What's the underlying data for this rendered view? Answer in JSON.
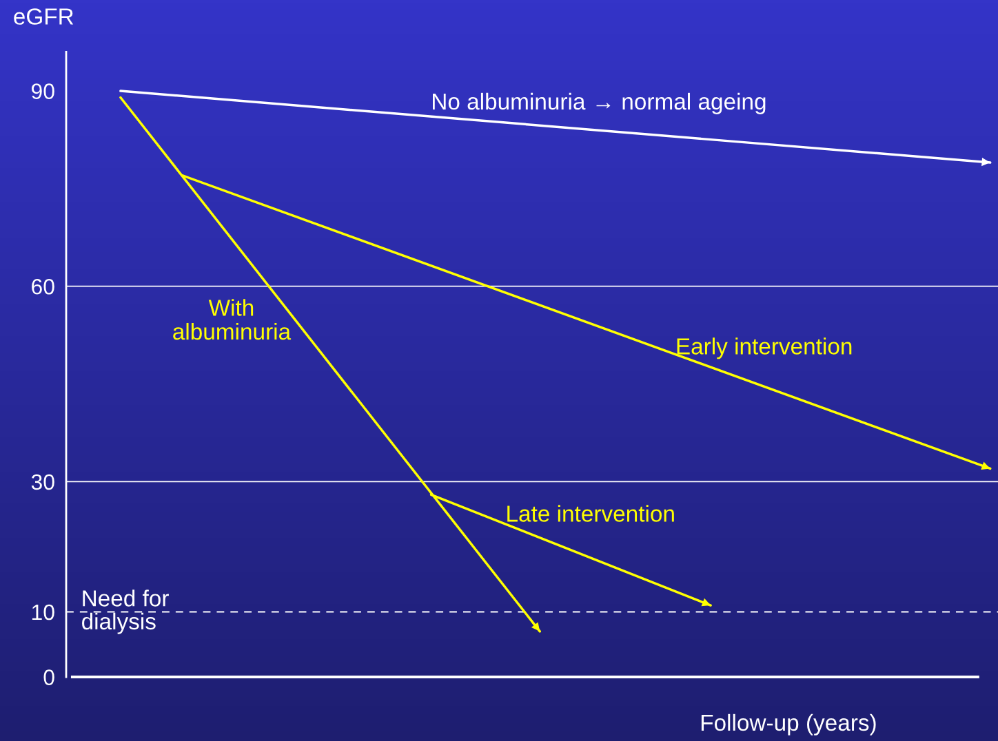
{
  "chart_data": {
    "type": "line",
    "xlabel": "Follow-up (years)",
    "ylabel": "eGFR",
    "categories": [
      null,
      null,
      null,
      null,
      null,
      null,
      null,
      null,
      null,
      null,
      null,
      null,
      null,
      null,
      null,
      null,
      null,
      null,
      null,
      null,
      null,
      null,
      null,
      null,
      null,
      null,
      null,
      null,
      null,
      null,
      null,
      null,
      null,
      null,
      null,
      null,
      null,
      null,
      null,
      null,
      null,
      null,
      null,
      null,
      null,
      null,
      null,
      null,
      null,
      null,
      null,
      null,
      null,
      null,
      null,
      null,
      null,
      null,
      null,
      null
    ],
    "ylim": [
      0,
      96
    ],
    "yticks": [
      0,
      10,
      30,
      60,
      90
    ],
    "series": [
      {
        "name": "No albuminuria → normal ageing",
        "color": "#ffffff",
        "values": [
          null,
          null,
          null,
          90,
          null,
          null,
          null,
          null,
          null,
          null,
          null,
          null,
          null,
          null,
          null,
          null,
          null,
          null,
          null,
          null,
          null,
          null,
          null,
          null,
          null,
          null,
          null,
          null,
          null,
          null,
          null,
          null,
          null,
          null,
          null,
          null,
          null,
          null,
          null,
          null,
          null,
          null,
          null,
          null,
          null,
          null,
          null,
          null,
          null,
          null,
          null,
          null,
          null,
          null,
          null,
          null,
          null,
          null,
          null,
          79
        ]
      },
      {
        "name": "With\nalbuminuria",
        "color": "#ffff00",
        "values": [
          null,
          null,
          null,
          89,
          null,
          null,
          null,
          null,
          null,
          null,
          null,
          null,
          null,
          null,
          null,
          null,
          null,
          null,
          null,
          null,
          null,
          null,
          null,
          null,
          null,
          null,
          null,
          null,
          null,
          null,
          7,
          null,
          null,
          null,
          null,
          null,
          null,
          null,
          null,
          null,
          null,
          null,
          null,
          null,
          null,
          null,
          null,
          null,
          null,
          null,
          null,
          null,
          null,
          null,
          null,
          null,
          null,
          null,
          null,
          null
        ]
      },
      {
        "name": "Early intervention",
        "color": "#ffff00",
        "values": [
          null,
          null,
          null,
          null,
          null,
          null,
          null,
          77,
          null,
          null,
          null,
          null,
          null,
          null,
          null,
          null,
          null,
          null,
          null,
          null,
          null,
          null,
          null,
          null,
          null,
          null,
          null,
          null,
          null,
          null,
          null,
          null,
          null,
          null,
          null,
          null,
          null,
          null,
          null,
          null,
          null,
          null,
          null,
          null,
          null,
          null,
          null,
          null,
          null,
          null,
          null,
          null,
          null,
          null,
          null,
          null,
          null,
          null,
          null,
          32
        ]
      },
      {
        "name": "Late intervention",
        "color": "#ffff00",
        "values": [
          null,
          null,
          null,
          null,
          null,
          null,
          null,
          null,
          null,
          null,
          null,
          null,
          null,
          null,
          null,
          null,
          null,
          null,
          null,
          null,
          null,
          null,
          null,
          28,
          null,
          null,
          null,
          null,
          null,
          null,
          null,
          null,
          null,
          null,
          null,
          null,
          null,
          null,
          null,
          null,
          null,
          11,
          null,
          null,
          null,
          null,
          null,
          null,
          null,
          null,
          null,
          null,
          null,
          null,
          null,
          null,
          null,
          null,
          null,
          null
        ]
      }
    ],
    "ref_lines": [
      {
        "axis": "y",
        "value": 60,
        "color": "#ffffff",
        "line_style": "solid"
      },
      {
        "axis": "y",
        "value": 30,
        "color": "#ffffff",
        "line_style": "solid"
      },
      {
        "axis": "y",
        "value": 10,
        "color": "#ffffff",
        "line_style": "dashed",
        "label": "Need for\ndialysis"
      }
    ]
  }
}
